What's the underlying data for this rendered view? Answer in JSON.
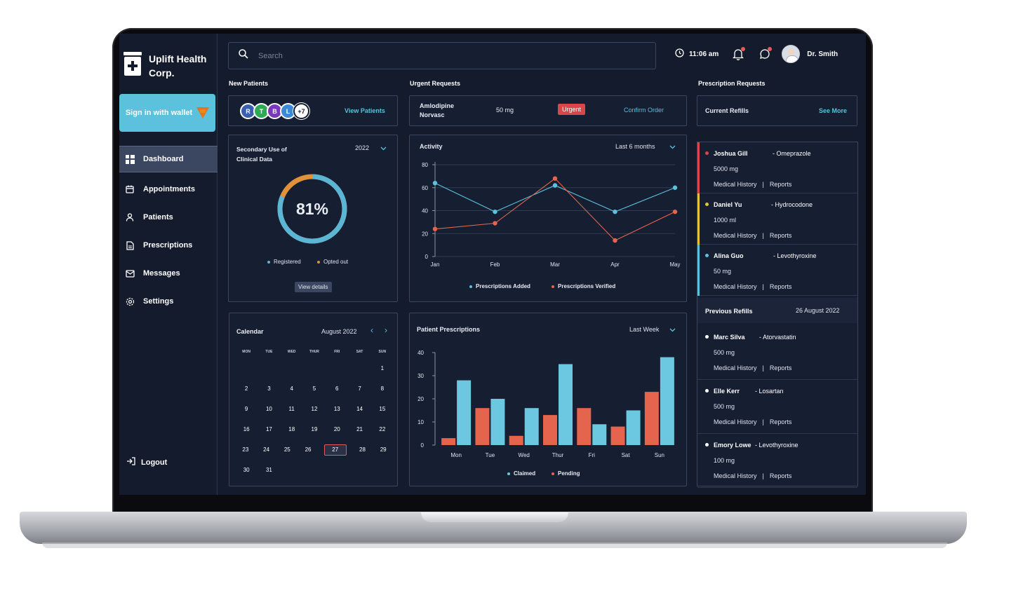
{
  "brand": {
    "name": "Uplift Health Corp."
  },
  "wallet": {
    "label": "Sign in with wallet"
  },
  "nav": {
    "items": [
      {
        "label": "Dashboard"
      },
      {
        "label": "Appointments"
      },
      {
        "label": "Patients"
      },
      {
        "label": "Prescriptions"
      },
      {
        "label": "Messages"
      },
      {
        "label": "Settings"
      }
    ],
    "logout": "Logout"
  },
  "search": {
    "placeholder": "Search"
  },
  "topbar": {
    "time": "11:06 am",
    "user": "Dr. Smith"
  },
  "new_patients": {
    "title": "New Patients",
    "avatars": [
      {
        "initial": "R",
        "color": "#3a5fb0"
      },
      {
        "initial": "T",
        "color": "#2eaa55"
      },
      {
        "initial": "B",
        "color": "#7a3ab8"
      },
      {
        "initial": "L",
        "color": "#3a8ad8"
      },
      {
        "initial": "+7",
        "color": "#ffffff"
      }
    ],
    "link": "View Patients"
  },
  "urgent": {
    "title": "Urgent Requests",
    "drug": "Amlodipine Norvasc",
    "dose": "50 mg",
    "badge": "Urgent",
    "link": "Confirm Order"
  },
  "prescription_requests": {
    "title": "Prescription Requests",
    "current_label": "Current Refills",
    "see_more": "See More",
    "current": [
      {
        "name": "Joshua Gill",
        "drug": "Omeprazole",
        "dose": "5000 mg",
        "color": "#d8454a"
      },
      {
        "name": "Daniel Yu",
        "drug": "Hydrocodone",
        "dose": "1000 ml",
        "color": "#e5c23a"
      },
      {
        "name": "Alina Guo",
        "drug": "Levothyroxine",
        "dose": "50 mg",
        "color": "#5bc1dc"
      }
    ],
    "history_label": "Medical History",
    "reports_label": "Reports",
    "previous_label": "Previous Refills",
    "previous_date": "26 August 2022",
    "previous": [
      {
        "name": "Marc Silva",
        "drug": "Atorvastatin",
        "dose": "500 mg"
      },
      {
        "name": "Elle Kerr",
        "drug": "Losartan",
        "dose": "500 mg"
      },
      {
        "name": "Emory Lowe",
        "drug": "Levothyroxine",
        "dose": "100 mg"
      }
    ]
  },
  "secondary": {
    "title": "Secondary Use of Clinical Data",
    "year": "2022",
    "percent": 81,
    "percent_label": "81%",
    "legend_registered": "Registered",
    "legend_opted": "Opted out",
    "details": "View details",
    "colors": {
      "registered": "#5bb6d6",
      "opted": "#e0913a"
    }
  },
  "calendar": {
    "title": "Calendar",
    "month": "August 2022",
    "weekdays": [
      "MON",
      "TUE",
      "WED",
      "THUR",
      "FRI",
      "SAT",
      "SUN"
    ],
    "weeks": [
      [
        "",
        "",
        "",
        "",
        "",
        "",
        "1"
      ],
      [
        "2",
        "3",
        "4",
        "5",
        "6",
        "7",
        "8"
      ],
      [
        "9",
        "10",
        "11",
        "12",
        "13",
        "14",
        "15"
      ],
      [
        "16",
        "17",
        "18",
        "19",
        "20",
        "21",
        "22"
      ],
      [
        "23",
        "24",
        "25",
        "26",
        "27",
        "28",
        "29"
      ],
      [
        "30",
        "31",
        "",
        "",
        "",
        "",
        ""
      ]
    ],
    "today": "27"
  },
  "chart_data": [
    {
      "type": "line",
      "title": "Activity",
      "range_label": "Last 6 months",
      "categories": [
        "Jan",
        "Feb",
        "Mar",
        "Apr",
        "May"
      ],
      "ylim": [
        0,
        80
      ],
      "yticks": [
        0,
        20,
        40,
        60,
        80
      ],
      "grid": true,
      "series": [
        {
          "name": "Prescriptions Added",
          "values": [
            64,
            39,
            62,
            39,
            60
          ],
          "color": "#5bc1dc"
        },
        {
          "name": "Prescriptions Verified",
          "values": [
            24,
            29,
            68,
            14,
            39
          ],
          "color": "#e4644e"
        }
      ],
      "legend": "bottom"
    },
    {
      "type": "bar",
      "title": "Patient Prescriptions",
      "range_label": "Last Week",
      "categories": [
        "Mon",
        "Tue",
        "Wed",
        "Thur",
        "Fri",
        "Sat",
        "Sun"
      ],
      "ylim": [
        0,
        40
      ],
      "yticks": [
        0,
        10,
        20,
        30,
        40
      ],
      "series": [
        {
          "name": "Pending",
          "values": [
            3,
            16,
            4,
            13,
            16,
            8,
            23
          ],
          "color": "#e4644e"
        },
        {
          "name": "Claimed",
          "values": [
            28,
            20,
            16,
            35,
            9,
            15,
            38
          ],
          "color": "#6cc8e0"
        }
      ],
      "legend_order": [
        "Claimed",
        "Pending"
      ],
      "legend": "bottom"
    }
  ]
}
